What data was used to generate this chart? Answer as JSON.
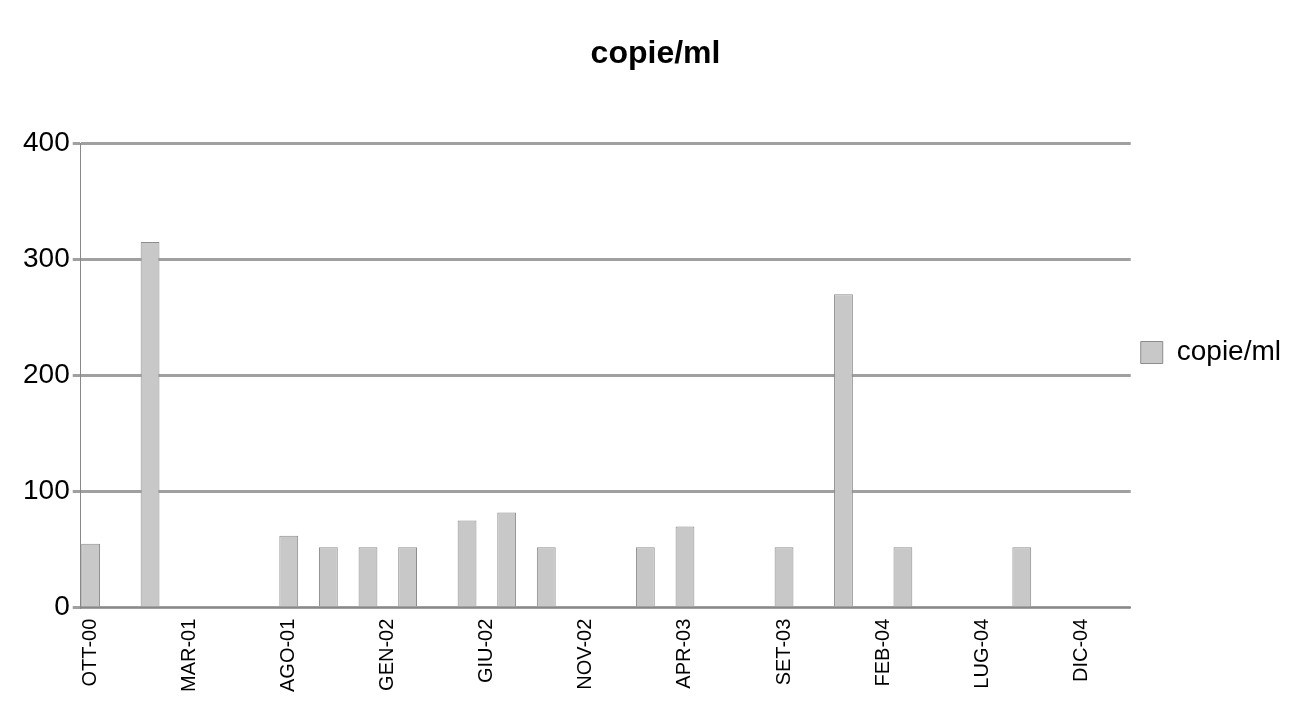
{
  "chart_data": {
    "type": "bar",
    "title": "copie/ml",
    "categories": [
      "OTT-00",
      null,
      null,
      null,
      null,
      "MAR-01",
      null,
      null,
      null,
      null,
      "AGO-01",
      null,
      null,
      null,
      null,
      "GEN-02",
      null,
      null,
      null,
      null,
      "GIU-02",
      null,
      null,
      null,
      null,
      "NOV-02",
      null,
      null,
      null,
      null,
      "APR-03",
      null,
      null,
      null,
      null,
      "SET-03",
      null,
      null,
      null,
      null,
      "FEB-04",
      null,
      null,
      null,
      null,
      "LUG-04",
      null,
      null,
      null,
      null,
      "DIC-04",
      null,
      null
    ],
    "series": [
      {
        "name": "copie/ml",
        "color": "#c8c8c8",
        "values": [
          55,
          null,
          null,
          315,
          null,
          null,
          null,
          null,
          null,
          null,
          62,
          null,
          52,
          null,
          52,
          null,
          52,
          null,
          null,
          75,
          null,
          82,
          null,
          52,
          null,
          null,
          null,
          null,
          52,
          null,
          70,
          null,
          null,
          null,
          null,
          52,
          null,
          null,
          270,
          null,
          null,
          52,
          null,
          null,
          null,
          null,
          null,
          52,
          null,
          null,
          null,
          null,
          null
        ]
      }
    ],
    "ylim": [
      0,
      400
    ],
    "yticks": [
      0,
      100,
      200,
      300,
      400
    ],
    "grid": "y",
    "legend": "right"
  }
}
